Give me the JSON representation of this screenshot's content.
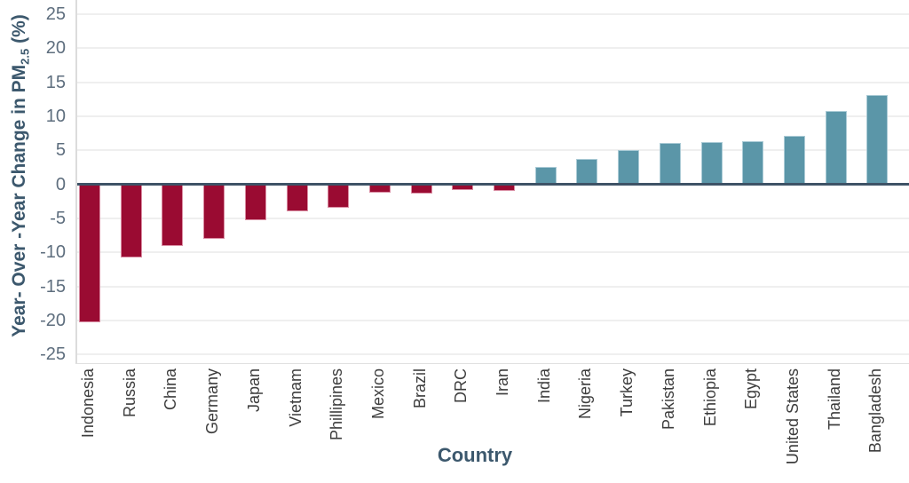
{
  "chart_data": {
    "type": "bar",
    "title": "",
    "xlabel": "Country",
    "ylabel": "Year- Over -Year Change in PM2.5 (%)",
    "ylabel_parts": {
      "prefix": "Year- Over -Year Change in PM",
      "subscript": "2.5",
      "suffix": " (%)"
    },
    "categories": [
      "Indonesia",
      "Russia",
      "China",
      "Germany",
      "Japan",
      "Vietnam",
      "Phillipines",
      "Mexico",
      "Brazil",
      "DRC",
      "Iran",
      "India",
      "Nigeria",
      "Turkey",
      "Pakistan",
      "Ethiopia",
      "Egypt",
      "United States",
      "Thailand",
      "Bangladesh"
    ],
    "values": [
      -20.3,
      -10.8,
      -9.1,
      -8.0,
      -5.3,
      -3.9,
      -3.4,
      -1.2,
      -1.3,
      -0.8,
      -0.9,
      2.6,
      3.7,
      5.1,
      6.1,
      6.2,
      6.4,
      7.2,
      10.8,
      13.1
    ],
    "yticks": [
      25,
      20,
      15,
      10,
      5,
      0,
      -5,
      -10,
      -15,
      -20,
      -25
    ],
    "ylim": [
      -26.4,
      27.1
    ],
    "grid": true,
    "legend": false,
    "colors": {
      "negative_bar": "#9A0B32",
      "negative_bar_edge": "#D98CA2",
      "positive_bar": "#5B96A8",
      "positive_bar_edge": "#ABCBD6",
      "zero_line": "#3E5266",
      "axis_title": "#3C586D",
      "tick_label": "#5E6E7E",
      "category_label": "#3D3D3D",
      "gridline": "#EFEFEF",
      "spine": "#DCDCDC",
      "background": "#FFFFFF"
    }
  }
}
